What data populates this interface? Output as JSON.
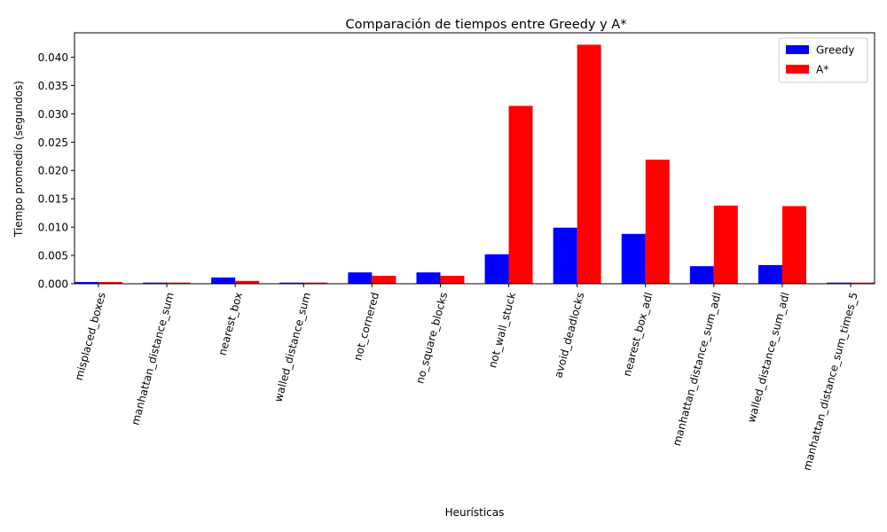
{
  "chart_data": {
    "type": "bar",
    "title": "Comparación de tiempos entre Greedy y A*",
    "xlabel": "Heurísticas",
    "ylabel": "Tiempo promedio (segundos)",
    "categories": [
      "misplaced_boxes",
      "manhattan_distance_sum",
      "nearest_box",
      "walled_distance_sum",
      "not_cornered",
      "no_square_blocks",
      "not_wall_stuck",
      "avoid_deadlocks",
      "nearest_box_adl",
      "manhattan_distance_sum_adl",
      "walled_distance_sum_adl",
      "manhattan_distance_sum_times_5"
    ],
    "series": [
      {
        "name": "Greedy",
        "color": "#0000ff",
        "values": [
          0.0003,
          0.0002,
          0.0011,
          0.0002,
          0.002,
          0.002,
          0.0052,
          0.0099,
          0.0088,
          0.0031,
          0.0033,
          0.0002
        ]
      },
      {
        "name": "A*",
        "color": "#ff0000",
        "values": [
          0.0003,
          0.0002,
          0.0005,
          0.0002,
          0.0014,
          0.0014,
          0.0314,
          0.0422,
          0.0219,
          0.0138,
          0.0137,
          0.0002
        ]
      }
    ],
    "ylim": [
      0,
      0.0443
    ],
    "yticks": [
      0.0,
      0.005,
      0.01,
      0.015,
      0.02,
      0.025,
      0.03,
      0.035,
      0.04
    ],
    "ytick_labels": [
      "0.000",
      "0.005",
      "0.010",
      "0.015",
      "0.020",
      "0.025",
      "0.030",
      "0.035",
      "0.040"
    ],
    "grid": false,
    "legend_position": "top-right",
    "xtick_rotation_deg": 75
  }
}
